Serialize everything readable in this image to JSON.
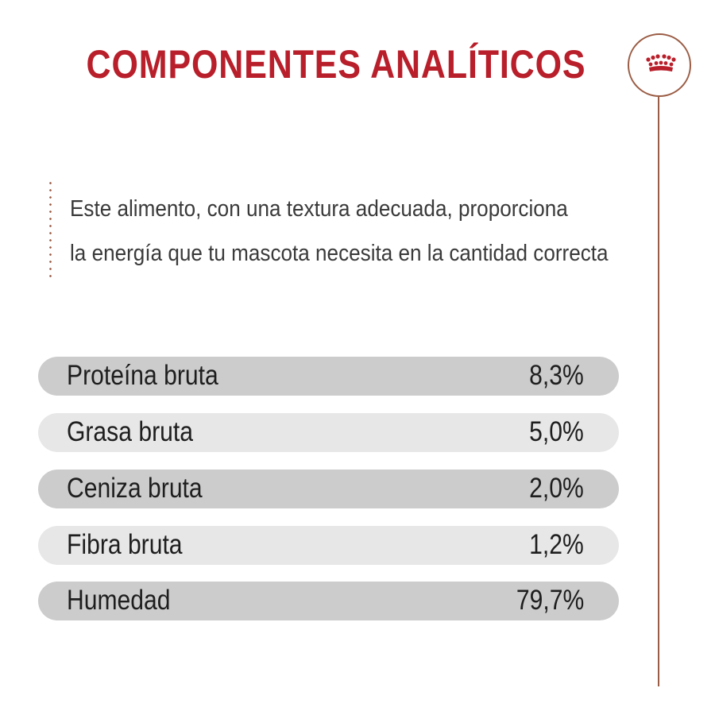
{
  "title": "COMPONENTES ANALÍTICOS",
  "logo": {
    "icon": "crown-icon",
    "color": "#b81f2a"
  },
  "description": {
    "line1": "Este alimento, con una textura adecuada, proporciona",
    "line2": "la energía que tu mascota necesita en la cantidad correcta"
  },
  "components": [
    {
      "label": "Proteína bruta",
      "value": "8,3%"
    },
    {
      "label": "Grasa bruta",
      "value": "5,0%"
    },
    {
      "label": "Ceniza bruta",
      "value": "2,0%"
    },
    {
      "label": "Fibra bruta",
      "value": "1,2%"
    },
    {
      "label": "Humedad",
      "value": "79,7%"
    }
  ],
  "colors": {
    "title": "#b81f2a",
    "accent_line": "#9a5c44",
    "row_dark": "#cccccc",
    "row_light": "#e7e7e7",
    "text": "#1e1e1e"
  }
}
